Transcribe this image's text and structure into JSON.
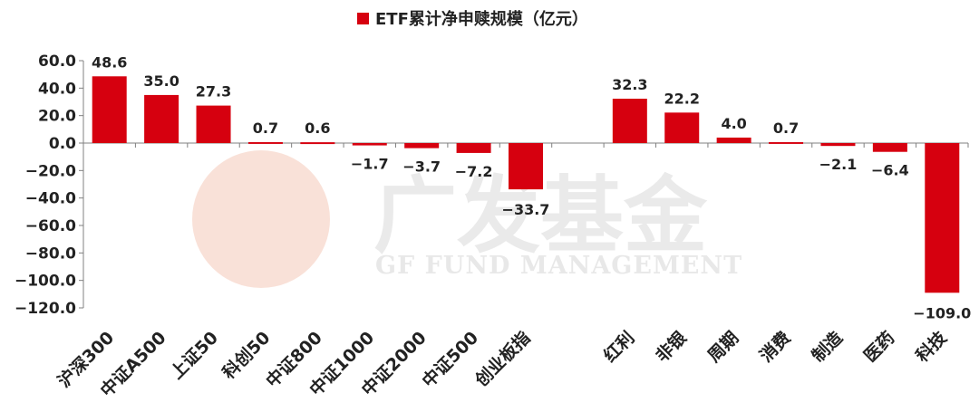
{
  "colors": {
    "bar": "#d6000f",
    "axis": "#808080",
    "text": "#222222",
    "watermark": "#d9d9d9"
  },
  "watermark": {
    "name_cn": "广发基金",
    "name_en": "GF FUND MANAGEMENT"
  },
  "chart_data": {
    "type": "bar",
    "title": "",
    "legend": {
      "label": "ETF累计净申赎规模（亿元）",
      "position": "top-center"
    },
    "xlabel": "",
    "ylabel": "",
    "ylim": [
      -120,
      60
    ],
    "yticks": [
      60,
      40,
      20,
      0,
      -20,
      -40,
      -60,
      -80,
      -100,
      -120
    ],
    "ytick_labels": [
      "60.0",
      "40.0",
      "20.0",
      "0.0",
      "−20.0",
      "−40.0",
      "−60.0",
      "−80.0",
      "−100.0",
      "−120.0"
    ],
    "grid": false,
    "categories": [
      "沪深300",
      "中证A500",
      "上证50",
      "科创50",
      "中证800",
      "中证1000",
      "中证2000",
      "中证500",
      "创业板指",
      "",
      "红利",
      "非银",
      "周期",
      "消费",
      "制造",
      "医药",
      "科技"
    ],
    "series": [
      {
        "name": "ETF累计净申赎规模（亿元）",
        "values": [
          48.6,
          35.0,
          27.3,
          0.7,
          0.6,
          -1.7,
          -3.7,
          -7.2,
          -33.7,
          null,
          32.3,
          22.2,
          4.0,
          0.7,
          -2.1,
          -6.4,
          -109.0
        ],
        "labels": [
          "48.6",
          "35.0",
          "27.3",
          "0.7",
          "0.6",
          "−1.7",
          "−3.7",
          "−7.2",
          "−33.7",
          "",
          "32.3",
          "22.2",
          "4.0",
          "0.7",
          "−2.1",
          "−6.4",
          "−109.0"
        ]
      }
    ]
  }
}
